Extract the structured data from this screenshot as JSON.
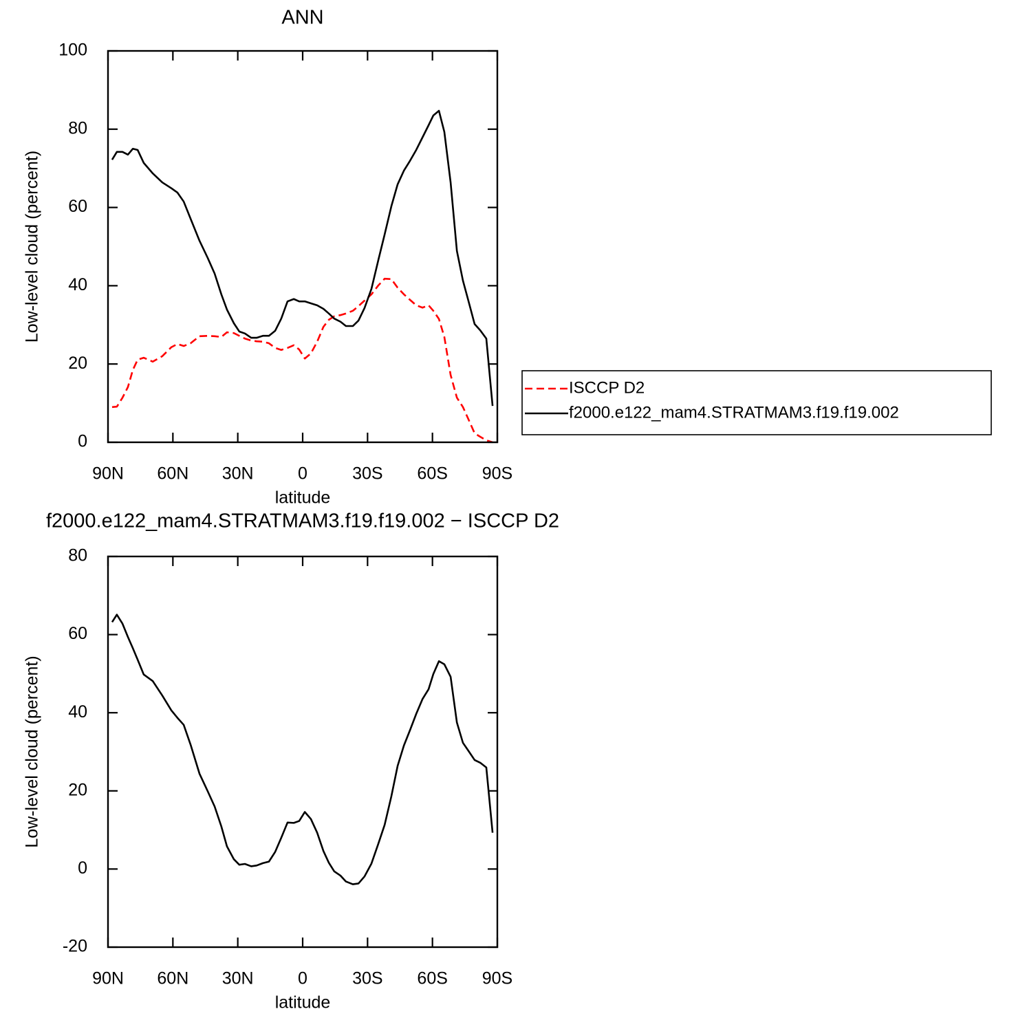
{
  "chart_data": [
    {
      "type": "line",
      "title": "ANN",
      "x_label": "latitude",
      "y_label": "Low-level cloud (percent)",
      "x": [
        88.1,
        85.9,
        83.3,
        80.8,
        78.5,
        76.3,
        73.5,
        69.3,
        64.9,
        60.7,
        57.9,
        55.0,
        51.8,
        47.7,
        43.9,
        40.7,
        37.6,
        35.0,
        31.8,
        29.3,
        26.7,
        23.8,
        21.3,
        18.4,
        15.6,
        12.7,
        9.9,
        7.0,
        4.1,
        1.6,
        -1.0,
        -3.8,
        -6.7,
        -9.6,
        -12.1,
        -14.6,
        -17.5,
        -20.0,
        -23.2,
        -25.8,
        -28.6,
        -31.8,
        -35.0,
        -37.9,
        -41.0,
        -43.9,
        -46.8,
        -49.6,
        -52.5,
        -55.4,
        -58.2,
        -60.4,
        -63.0,
        -65.5,
        -68.4,
        -71.3,
        -74.1,
        -76.7,
        -79.5,
        -82.1,
        -84.9,
        -87.8
      ],
      "series": [
        {
          "name": "ISCCP D2",
          "color": "#ff0000",
          "linestyle": "dashed",
          "values": [
            9.0,
            9.1,
            11.4,
            14.1,
            18.5,
            21.1,
            21.6,
            20.6,
            22.0,
            24.3,
            25.1,
            24.6,
            25.3,
            27.1,
            27.2,
            27.1,
            26.9,
            28.1,
            27.9,
            27.2,
            26.5,
            26.0,
            25.8,
            25.7,
            25.3,
            24.1,
            23.6,
            24.1,
            24.8,
            23.7,
            21.4,
            22.7,
            25.7,
            29.5,
            31.3,
            32.2,
            32.5,
            32.9,
            33.6,
            34.8,
            36.2,
            37.8,
            40.1,
            41.8,
            41.7,
            39.5,
            37.8,
            36.4,
            35.0,
            34.4,
            35.0,
            33.6,
            31.5,
            26.9,
            17.2,
            11.4,
            9.0,
            5.8,
            2.3,
            1.4,
            0.5,
            0.0
          ]
        },
        {
          "name": "f2000.e122_mam4.STRATMAM3.f19.f19.002",
          "color": "#000000",
          "linestyle": "solid",
          "values": [
            72.2,
            74.2,
            74.2,
            73.5,
            75.0,
            74.7,
            71.4,
            68.7,
            66.4,
            64.9,
            63.8,
            61.5,
            57.1,
            51.5,
            47.1,
            43.1,
            37.8,
            33.9,
            30.4,
            28.3,
            27.8,
            26.7,
            26.7,
            27.2,
            27.2,
            28.5,
            31.6,
            36.0,
            36.6,
            36.0,
            36.0,
            35.5,
            35.0,
            34.1,
            32.9,
            31.6,
            30.8,
            29.7,
            29.7,
            31.1,
            34.3,
            39.2,
            46.6,
            53.1,
            60.3,
            65.9,
            69.4,
            71.9,
            74.7,
            77.9,
            81.0,
            83.5,
            84.7,
            79.3,
            66.4,
            48.9,
            41.3,
            36.0,
            30.2,
            28.6,
            26.5,
            9.3
          ]
        }
      ],
      "xlim": [
        90,
        -90
      ],
      "xticks": [
        {
          "value": 90,
          "label": "90N"
        },
        {
          "value": 60,
          "label": "60N"
        },
        {
          "value": 30,
          "label": "30N"
        },
        0,
        {
          "value": -30,
          "label": "30S"
        },
        {
          "value": -60,
          "label": "60S"
        },
        {
          "value": -90,
          "label": "90S"
        }
      ],
      "ylim": [
        0,
        100
      ],
      "yticks": [
        0,
        20,
        40,
        60,
        80,
        100
      ],
      "legend": "right"
    },
    {
      "type": "line",
      "title": "f2000.e122_mam4.STRATMAM3.f19.f19.002 − ISCCP D2",
      "x_label": "latitude",
      "y_label": "Low-level cloud (percent)",
      "x": [
        88.1,
        85.9,
        83.3,
        80.8,
        78.5,
        76.3,
        73.5,
        69.3,
        64.9,
        60.7,
        57.9,
        55.0,
        51.8,
        47.7,
        43.9,
        40.7,
        37.6,
        35.0,
        31.8,
        29.3,
        26.7,
        23.8,
        21.3,
        18.4,
        15.6,
        12.7,
        9.9,
        7.0,
        4.1,
        1.6,
        -1.0,
        -3.8,
        -6.7,
        -9.6,
        -12.1,
        -14.6,
        -17.5,
        -20.0,
        -23.2,
        -25.8,
        -28.6,
        -31.8,
        -35.0,
        -37.9,
        -41.0,
        -43.9,
        -46.8,
        -49.6,
        -52.5,
        -55.4,
        -58.2,
        -60.4,
        -63.0,
        -65.5,
        -68.4,
        -71.3,
        -74.1,
        -76.7,
        -79.5,
        -82.1,
        -84.9,
        -87.8
      ],
      "series": [
        {
          "color": "#000000",
          "linestyle": "solid",
          "values": [
            63.2,
            65.1,
            62.8,
            59.4,
            56.5,
            53.6,
            49.8,
            48.1,
            44.4,
            40.6,
            38.7,
            36.9,
            31.8,
            24.4,
            19.9,
            16.0,
            10.9,
            5.8,
            2.5,
            1.1,
            1.3,
            0.7,
            0.9,
            1.5,
            1.9,
            4.4,
            8.0,
            11.9,
            11.8,
            12.3,
            14.6,
            12.8,
            9.3,
            4.6,
            1.6,
            -0.6,
            -1.7,
            -3.2,
            -3.9,
            -3.7,
            -1.9,
            1.4,
            6.5,
            11.3,
            18.6,
            26.4,
            31.6,
            35.5,
            39.7,
            43.5,
            46.0,
            49.9,
            53.2,
            52.4,
            49.2,
            37.5,
            32.3,
            30.2,
            27.9,
            27.2,
            26.0,
            9.3
          ]
        }
      ],
      "xlim": [
        90,
        -90
      ],
      "xticks": [
        {
          "value": 90,
          "label": "90N"
        },
        {
          "value": 60,
          "label": "60N"
        },
        {
          "value": 30,
          "label": "30N"
        },
        0,
        {
          "value": -30,
          "label": "30S"
        },
        {
          "value": -60,
          "label": "60S"
        },
        {
          "value": -90,
          "label": "90S"
        }
      ],
      "ylim": [
        -20,
        80
      ],
      "yticks": [
        -20,
        0,
        20,
        40,
        60,
        80
      ]
    }
  ]
}
